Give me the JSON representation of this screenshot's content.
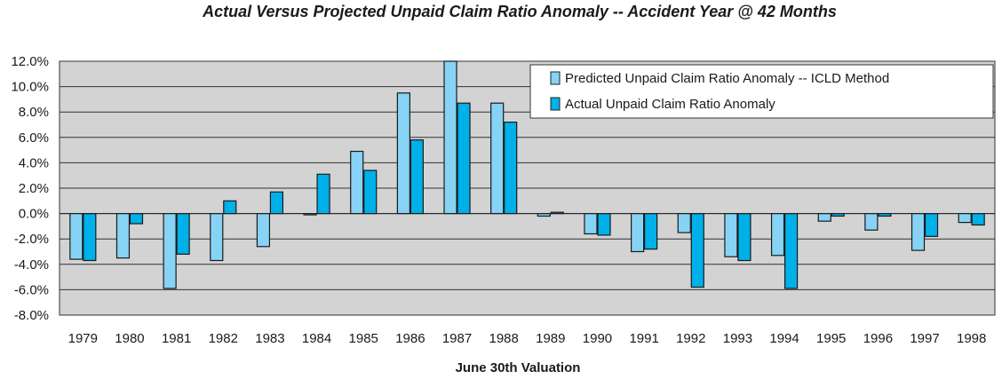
{
  "chart_data": {
    "type": "bar",
    "title": "Actual Versus Projected Unpaid Claim Ratio Anomaly -- Accident Year @ 42 Months",
    "xlabel": "June 30th Valuation",
    "ylabel": "",
    "ylim": [
      -8.0,
      12.0
    ],
    "yticks": [
      12.0,
      10.0,
      8.0,
      6.0,
      4.0,
      2.0,
      0.0,
      -2.0,
      -4.0,
      -6.0,
      -8.0
    ],
    "ytick_labels": [
      "12.0%",
      "10.0%",
      "8.0%",
      "6.0%",
      "4.0%",
      "2.0%",
      "0.0%",
      "-2.0%",
      "-4.0%",
      "-6.0%",
      "-8.0%"
    ],
    "grid": true,
    "legend_position": "top-right",
    "categories": [
      "1979",
      "1980",
      "1981",
      "1982",
      "1983",
      "1984",
      "1985",
      "1986",
      "1987",
      "1988",
      "1989",
      "1990",
      "1991",
      "1992",
      "1993",
      "1994",
      "1995",
      "1996",
      "1997",
      "1998"
    ],
    "series": [
      {
        "name": "Predicted Unpaid Claim Ratio Anomaly -- ICLD Method",
        "color": "#87d3f5",
        "values": [
          -3.6,
          -3.5,
          -5.9,
          -3.7,
          -2.6,
          -0.1,
          4.9,
          9.5,
          12.5,
          8.7,
          -0.2,
          -1.6,
          -3.0,
          -1.5,
          -3.4,
          -3.3,
          -0.6,
          -1.3,
          -2.9,
          -0.7
        ]
      },
      {
        "name": "Actual Unpaid Claim Ratio Anomaly",
        "color": "#00b0e8",
        "values": [
          -3.7,
          -0.8,
          -3.2,
          1.0,
          1.7,
          3.1,
          3.4,
          5.8,
          8.7,
          7.2,
          0.1,
          -1.7,
          -2.8,
          -5.8,
          -3.7,
          -5.9,
          -0.2,
          -0.2,
          -1.8,
          -0.9
        ]
      }
    ]
  },
  "colors": {
    "plot_background": "#d3d3d3",
    "gridline": "#333333"
  }
}
